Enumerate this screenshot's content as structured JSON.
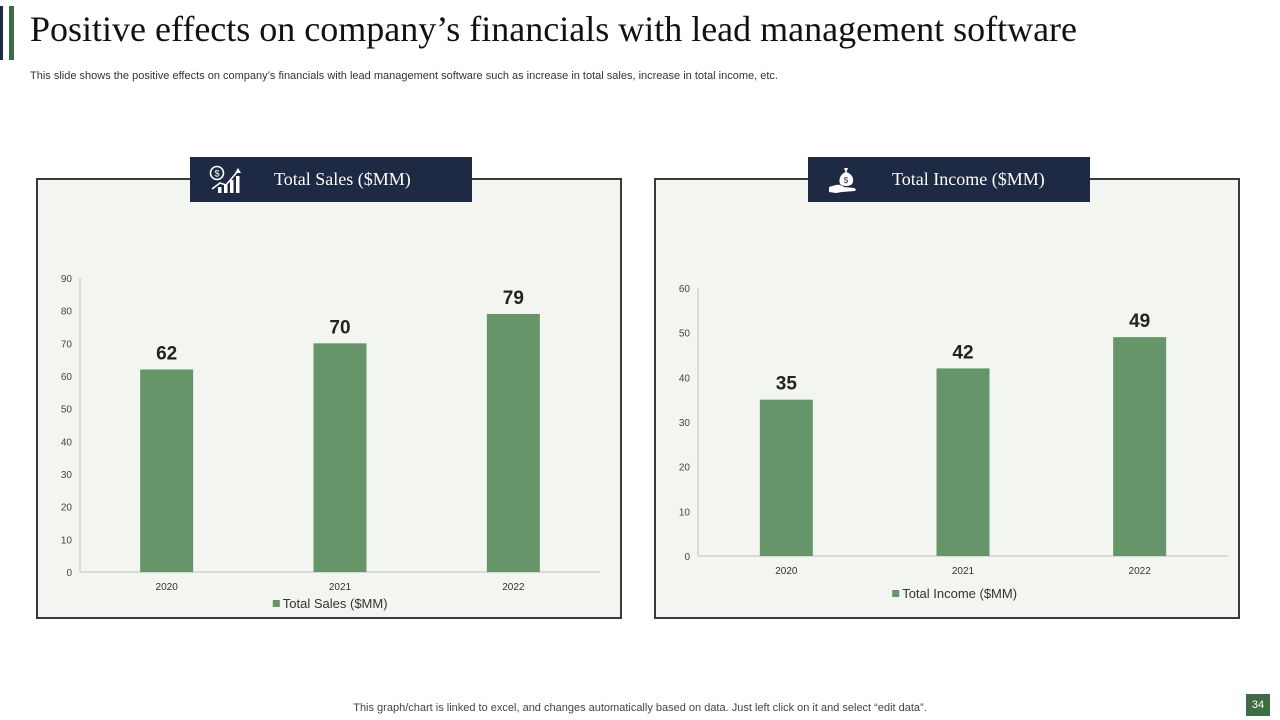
{
  "slide": {
    "title": "Positive effects on company’s financials with lead management software",
    "subtitle": "This slide shows the positive effects on company’s financials with lead management software such as increase in total sales, increase in total income, etc.",
    "footer": "This graph/chart is linked to excel,  and changes automatically based on data. Just left click on it and select “edit data”.",
    "page_number": "34"
  },
  "panels": [
    {
      "header": "Total Sales ($MM)",
      "icon": "dollar-growth-chart-icon"
    },
    {
      "header": "Total Income ($MM)",
      "icon": "money-bag-hand-icon"
    }
  ],
  "colors": {
    "accent_dark": "#1e2a44",
    "accent_green": "#3f6b45",
    "bar": "#66956a",
    "panel_bg": "#f3f6f0",
    "header_bg": "#1e2a44",
    "page_num_bg": "#3f6b45"
  },
  "chart_data": [
    {
      "type": "bar",
      "title": "Total Sales ($MM)",
      "categories": [
        "2020",
        "2021",
        "2022"
      ],
      "series": [
        {
          "name": "Total Sales ($MM)",
          "values": [
            62,
            70,
            79
          ]
        }
      ],
      "ylim": [
        0,
        90
      ],
      "yticks": [
        0,
        10,
        20,
        30,
        40,
        50,
        60,
        70,
        80,
        90
      ],
      "legend": "bottom"
    },
    {
      "type": "bar",
      "title": "Total Income ($MM)",
      "categories": [
        "2020",
        "2021",
        "2022"
      ],
      "series": [
        {
          "name": "Total Income ($MM)",
          "values": [
            35,
            42,
            49
          ]
        }
      ],
      "ylim": [
        0,
        60
      ],
      "yticks": [
        0,
        10,
        20,
        30,
        40,
        50,
        60
      ],
      "legend": "bottom"
    }
  ]
}
